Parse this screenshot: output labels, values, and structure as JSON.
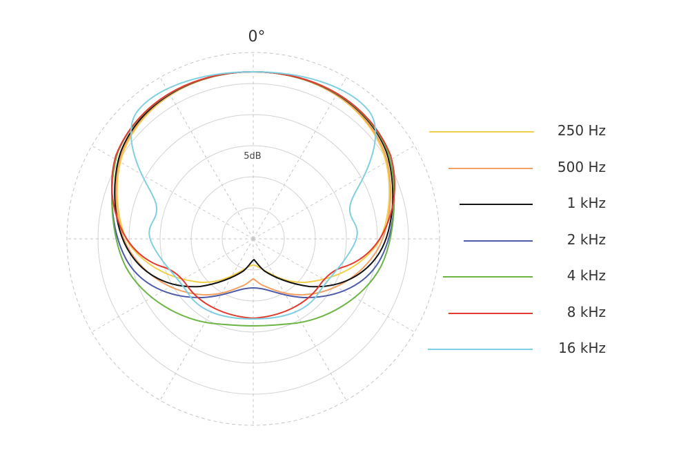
{
  "chart_data": {
    "type": "polar",
    "angle_label": "0°",
    "ring_label": "5dB",
    "series": [
      {
        "name": "250 Hz",
        "color": "#f2cf4a"
      },
      {
        "name": "500 Hz",
        "color": "#f2a064"
      },
      {
        "name": "1 kHz",
        "color": "#111111"
      },
      {
        "name": "2 kHz",
        "color": "#4c5ba8"
      },
      {
        "name": "4 kHz",
        "color": "#6cb544"
      },
      {
        "name": "8 kHz",
        "color": "#e23a2e"
      },
      {
        "name": "16 kHz",
        "color": "#7fcfe2"
      }
    ]
  }
}
